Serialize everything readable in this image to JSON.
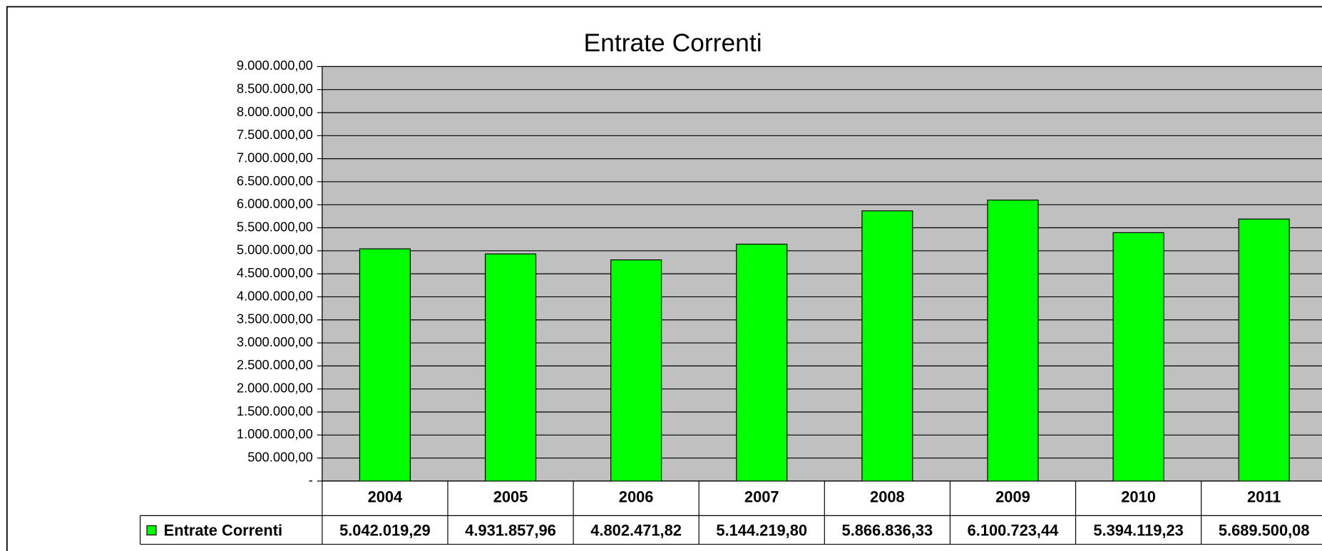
{
  "chart_data": {
    "type": "bar",
    "title": "Entrate Correnti",
    "categories": [
      "2004",
      "2005",
      "2006",
      "2007",
      "2008",
      "2009",
      "2010",
      "2011"
    ],
    "series": [
      {
        "name": "Entrate Correnti",
        "color": "#00ff00",
        "values": [
          5042019.29,
          4931857.96,
          4802471.82,
          5144219.8,
          5866836.33,
          6100723.44,
          5394119.23,
          5689500.08
        ],
        "value_labels": [
          "5.042.019,29",
          "4.931.857,96",
          "4.802.471,82",
          "5.144.219,80",
          "5.866.836,33",
          "6.100.723,44",
          "5.394.119,23",
          "5.689.500,08"
        ]
      }
    ],
    "ylim": [
      0,
      9000000
    ],
    "yticks": [
      {
        "value": 0,
        "label": "-"
      },
      {
        "value": 500000,
        "label": "500.000,00"
      },
      {
        "value": 1000000,
        "label": "1.000.000,00"
      },
      {
        "value": 1500000,
        "label": "1.500.000,00"
      },
      {
        "value": 2000000,
        "label": "2.000.000,00"
      },
      {
        "value": 2500000,
        "label": "2.500.000,00"
      },
      {
        "value": 3000000,
        "label": "3.000.000,00"
      },
      {
        "value": 3500000,
        "label": "3.500.000,00"
      },
      {
        "value": 4000000,
        "label": "4.000.000,00"
      },
      {
        "value": 4500000,
        "label": "4.500.000,00"
      },
      {
        "value": 5000000,
        "label": "5.000.000,00"
      },
      {
        "value": 5500000,
        "label": "5.500.000,00"
      },
      {
        "value": 6000000,
        "label": "6.000.000,00"
      },
      {
        "value": 6500000,
        "label": "6.500.000,00"
      },
      {
        "value": 7000000,
        "label": "7.000.000,00"
      },
      {
        "value": 7500000,
        "label": "7.500.000,00"
      },
      {
        "value": 8000000,
        "label": "8.000.000,00"
      },
      {
        "value": 8500000,
        "label": "8.500.000,00"
      },
      {
        "value": 9000000,
        "label": "9.000.000,00"
      }
    ],
    "grid": true,
    "background": "#c0c0c0"
  }
}
